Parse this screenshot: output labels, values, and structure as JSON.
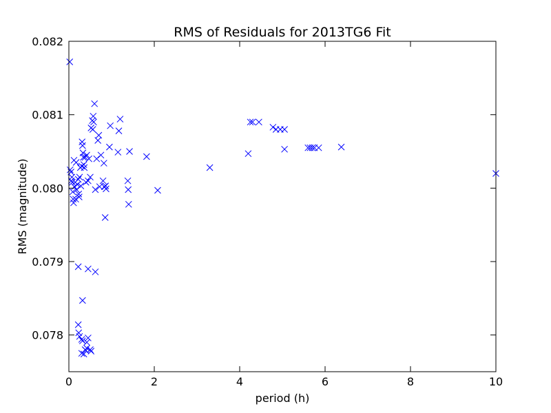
{
  "chart_data": {
    "type": "scatter",
    "title": "RMS of Residuals for 2013TG6 Fit",
    "xlabel": "period (h)",
    "ylabel": "RMS (magnitude)",
    "xlim": [
      0,
      10
    ],
    "ylim": [
      0.0775,
      0.082
    ],
    "xticks": [
      0,
      2,
      4,
      6,
      8,
      10
    ],
    "xtick_labels": [
      "0",
      "2",
      "4",
      "6",
      "8",
      "10"
    ],
    "yticks": [
      0.078,
      0.079,
      0.08,
      0.081,
      0.082
    ],
    "ytick_labels": [
      "0.078",
      "0.079",
      "0.080",
      "0.081",
      "0.082"
    ],
    "marker": "x",
    "color": "#0000ff",
    "grid": false,
    "series": [
      {
        "x": [
          0.02,
          0.03,
          0.05,
          0.06,
          0.07,
          0.08,
          0.09,
          0.1,
          0.11,
          0.12,
          0.13,
          0.15,
          0.16,
          0.17,
          0.18,
          0.2,
          0.22,
          0.23,
          0.24,
          0.25,
          0.27,
          0.28,
          0.3,
          0.31,
          0.32,
          0.33,
          0.34,
          0.35,
          0.36,
          0.38,
          0.4,
          0.42,
          0.45,
          0.47,
          0.5,
          0.52,
          0.55,
          0.56,
          0.57,
          0.58,
          0.6,
          0.62,
          0.65,
          0.68,
          0.7,
          0.72,
          0.75,
          0.8,
          0.82,
          0.83,
          0.85,
          0.86,
          0.87,
          0.95,
          0.97,
          1.15,
          1.17,
          1.2,
          1.38,
          1.39,
          1.4,
          1.42,
          1.82,
          2.08,
          3.3,
          4.2,
          4.25,
          4.3,
          4.45,
          4.78,
          4.85,
          4.95,
          5.05,
          5.05,
          5.6,
          5.65,
          5.7,
          5.75,
          5.85,
          6.38,
          10.0,
          0.22,
          0.45,
          0.62,
          0.32,
          0.22,
          0.23,
          0.25,
          0.3,
          0.32,
          0.35,
          0.4,
          0.45,
          0.42,
          0.5,
          0.52,
          0.3,
          0.38,
          0.42
        ],
        "y": [
          0.08172,
          0.08025,
          0.08022,
          0.0801,
          0.08015,
          0.08008,
          0.07995,
          0.07985,
          0.0798,
          0.08038,
          0.08002,
          0.08008,
          0.07985,
          0.08035,
          0.07998,
          0.08005,
          0.08012,
          0.07992,
          0.07988,
          0.08015,
          0.08028,
          0.08003,
          0.0803,
          0.08063,
          0.08058,
          0.08048,
          0.08042,
          0.08032,
          0.08028,
          0.08042,
          0.08008,
          0.08045,
          0.0801,
          0.0804,
          0.08015,
          0.08082,
          0.08092,
          0.0808,
          0.08098,
          0.0809,
          0.08115,
          0.07998,
          0.0804,
          0.08065,
          0.08072,
          0.08002,
          0.08045,
          0.0801,
          0.08034,
          0.08002,
          0.0796,
          0.08003,
          0.07999,
          0.08056,
          0.08085,
          0.08049,
          0.08078,
          0.08094,
          0.0801,
          0.07998,
          0.07978,
          0.0805,
          0.08043,
          0.07997,
          0.08028,
          0.08047,
          0.0809,
          0.0809,
          0.0809,
          0.08083,
          0.0808,
          0.0808,
          0.0808,
          0.08053,
          0.08055,
          0.08055,
          0.08055,
          0.08055,
          0.08055,
          0.08056,
          0.0802,
          0.07893,
          0.0789,
          0.07886,
          0.07847,
          0.07814,
          0.07803,
          0.07798,
          0.07794,
          0.07792,
          0.07774,
          0.07779,
          0.07796,
          0.0779,
          0.0778,
          0.07778,
          0.07775,
          0.0778,
          0.07782
        ]
      }
    ]
  }
}
